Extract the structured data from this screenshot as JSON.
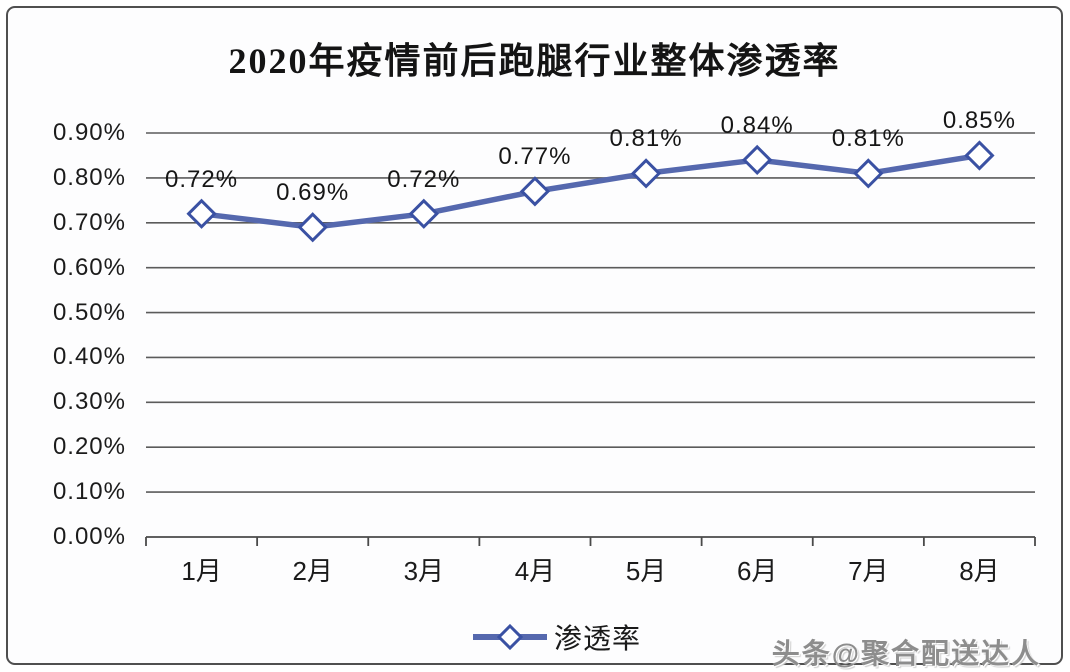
{
  "title": "2020年疫情前后跑腿行业整体渗透率",
  "legend": {
    "label": "渗透率"
  },
  "watermark": "头条@聚合配送达人",
  "colors": {
    "line": "#5568ae",
    "marker_fill": "#ffffff",
    "marker_stroke": "#3a51a3",
    "grid": "#5b5b5b",
    "axis": "#4a4a4a",
    "text": "#1a1a1a",
    "background": "#fdfdfe",
    "frame_border": "#4f4f4f",
    "watermark_gray": "#8d8d8d"
  },
  "chart_data": {
    "type": "line",
    "title": "2020年疫情前后跑腿行业整体渗透率",
    "categories": [
      "1月",
      "2月",
      "3月",
      "4月",
      "5月",
      "6月",
      "7月",
      "8月"
    ],
    "series": [
      {
        "name": "渗透率",
        "values": [
          0.72,
          0.69,
          0.72,
          0.77,
          0.81,
          0.84,
          0.81,
          0.85
        ]
      }
    ],
    "data_labels": [
      "0.72%",
      "0.69%",
      "0.72%",
      "0.77%",
      "0.81%",
      "0.84%",
      "0.81%",
      "0.85%"
    ],
    "xlabel": "",
    "ylabel": "",
    "ylim": [
      0,
      0.9
    ],
    "ytick_step": 0.1,
    "yticks": [
      "0.00%",
      "0.10%",
      "0.20%",
      "0.30%",
      "0.40%",
      "0.50%",
      "0.60%",
      "0.70%",
      "0.80%",
      "0.90%"
    ],
    "grid": true,
    "marker": "diamond",
    "legend_position": "bottom",
    "legend_entries": [
      "渗透率"
    ]
  }
}
